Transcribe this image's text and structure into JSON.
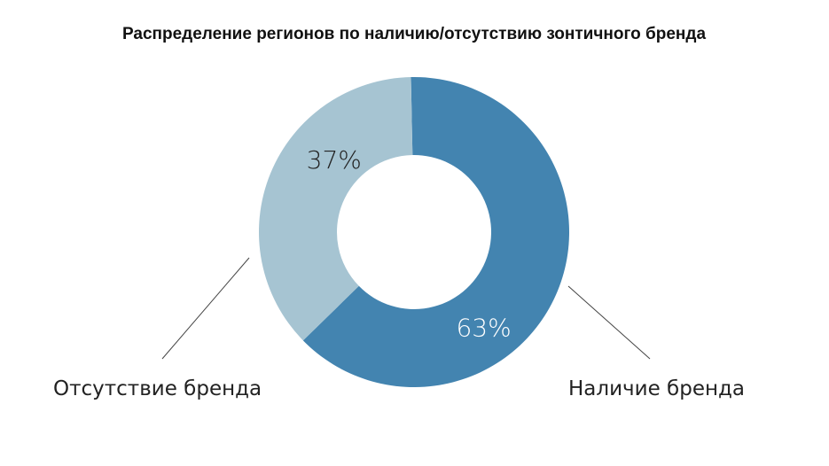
{
  "chart_data": {
    "type": "pie",
    "title": "Распределение регионов по наличию/отсутствию зонтичного бренда",
    "donut": true,
    "categories": [
      "Наличие бренда",
      "Отсутствие бренда"
    ],
    "values": [
      63,
      37
    ],
    "value_labels": [
      "63%",
      "37%"
    ],
    "colors": [
      "#4384b0",
      "#a6c4d2"
    ],
    "label_colors": [
      "#ffffff",
      "#222222"
    ],
    "legend": "outside-labels"
  }
}
